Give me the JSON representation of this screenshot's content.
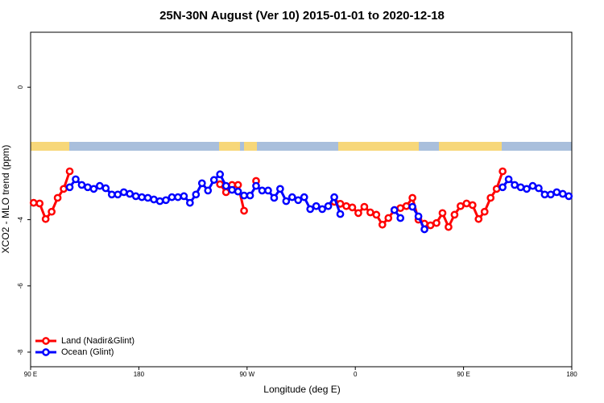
{
  "chart_data": {
    "type": "line",
    "title": "25N-30N August (Ver 10)   2015-01-01 to 2020-12-18",
    "x_label": "Longitude (deg E)",
    "y_label": "XCO2 - MLO trend (ppm)",
    "x": [
      92.5,
      97.5,
      102.5,
      107.5,
      112.5,
      117.5,
      122.5,
      127.5,
      132.5,
      137.5,
      142.5,
      147.5,
      152.5,
      157.5,
      162.5,
      167.5,
      172.5,
      177.5,
      182.5,
      187.5,
      192.5,
      197.5,
      202.5,
      207.5,
      212.5,
      217.5,
      222.5,
      227.5,
      232.5,
      237.5,
      242.5,
      247.5,
      252.5,
      257.5,
      262.5,
      267.5,
      272.5,
      277.5,
      282.5,
      287.5,
      292.5,
      297.5,
      302.5,
      307.5,
      312.5,
      317.5,
      322.5,
      327.5,
      332.5,
      337.5,
      342.5,
      347.5,
      352.5,
      357.5,
      362.5,
      367.5,
      372.5,
      377.5,
      382.5,
      387.5,
      392.5,
      397.5,
      402.5,
      407.5,
      412.5,
      417.5,
      422.5,
      427.5,
      432.5,
      437.5,
      442.5,
      447.5,
      452.5,
      457.5,
      462.5,
      467.5,
      472.5,
      477.5,
      482.5,
      487.5,
      492.5,
      497.5,
      502.5,
      507.5,
      512.5,
      517.5,
      522.5,
      527.5,
      532.5,
      537.5
    ],
    "series": [
      {
        "name": "Land (Nadir&Glint)",
        "color": "#ff0000",
        "values": [
          -3.49,
          -3.51,
          -3.98,
          -3.76,
          -3.34,
          -3.07,
          -2.54,
          null,
          null,
          null,
          null,
          null,
          null,
          null,
          null,
          null,
          null,
          null,
          null,
          null,
          null,
          null,
          null,
          null,
          null,
          null,
          null,
          null,
          null,
          null,
          null,
          -2.93,
          -3.17,
          -2.95,
          -2.95,
          -3.73,
          null,
          -2.83,
          null,
          null,
          null,
          null,
          null,
          null,
          null,
          null,
          null,
          null,
          null,
          null,
          -3.46,
          -3.52,
          -3.59,
          -3.63,
          -3.8,
          -3.61,
          -3.78,
          -3.85,
          -4.15,
          -3.95,
          -3.71,
          -3.65,
          -3.59,
          -3.34,
          -4.0,
          -4.12,
          -4.17,
          -4.1,
          -3.8,
          -4.22,
          -3.85,
          -3.59,
          -3.51,
          -3.56,
          -3.98,
          -3.76,
          -3.34,
          -3.07,
          -2.54,
          null,
          null,
          null,
          null,
          null,
          null,
          null,
          null,
          null,
          null,
          null
        ]
      },
      {
        "name": "Ocean (Glint)",
        "color": "#0000ff",
        "values": [
          null,
          null,
          null,
          null,
          null,
          null,
          -3.02,
          -2.78,
          -2.95,
          -3.02,
          -3.07,
          -2.98,
          -3.05,
          -3.24,
          -3.24,
          -3.17,
          -3.22,
          -3.29,
          -3.32,
          -3.34,
          -3.39,
          -3.44,
          -3.41,
          -3.32,
          -3.32,
          -3.29,
          -3.49,
          -3.24,
          -2.9,
          -3.12,
          -2.8,
          -2.63,
          -2.98,
          -3.1,
          -3.15,
          -3.27,
          -3.27,
          -2.98,
          -3.12,
          -3.12,
          -3.34,
          -3.07,
          -3.44,
          -3.32,
          -3.41,
          -3.32,
          -3.68,
          -3.59,
          -3.68,
          -3.59,
          -3.32,
          -3.83,
          null,
          null,
          null,
          null,
          null,
          null,
          null,
          null,
          -3.71,
          -3.95,
          null,
          -3.61,
          -3.9,
          -4.29,
          null,
          null,
          null,
          null,
          null,
          null,
          null,
          null,
          null,
          null,
          null,
          null,
          -3.02,
          -2.78,
          -2.95,
          -3.02,
          -3.07,
          -2.98,
          -3.05,
          -3.24,
          -3.24,
          -3.17,
          -3.22,
          -3.29
        ]
      }
    ],
    "xlim": [
      90,
      540
    ],
    "xticks": [
      {
        "value": 90,
        "label": "90 E"
      },
      180,
      {
        "value": 270,
        "label": "90 W"
      },
      {
        "value": 360,
        "label": "0"
      },
      {
        "value": 450,
        "label": "90 E"
      },
      {
        "value": 540,
        "label": "180"
      }
    ],
    "ylim": [
      -8.44,
      1.66
    ],
    "yticks": [
      0,
      -4,
      -6,
      -8
    ],
    "legend": "bottom-left"
  }
}
